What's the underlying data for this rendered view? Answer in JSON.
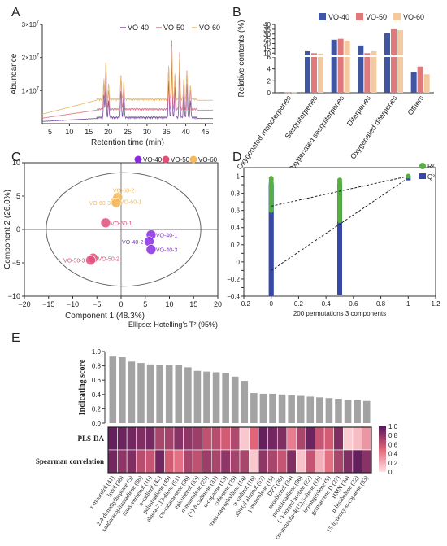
{
  "panels": [
    {
      "letter": "A"
    },
    {
      "letter": "B"
    },
    {
      "letter": "C"
    },
    {
      "letter": "D"
    },
    {
      "letter": "E"
    }
  ],
  "chart_data": [
    {
      "id": "A",
      "type": "line",
      "title": "",
      "xlabel": "Retention time (min)",
      "ylabel": "Abundance",
      "xlim": [
        3,
        47
      ],
      "ylim": [
        0,
        30000000
      ],
      "xticks": [
        "5",
        "10",
        "15",
        "20",
        "25",
        "30",
        "35",
        "40",
        "45"
      ],
      "yticks": [
        {
          "base": "1×10",
          "exp": "7",
          "value": 10000000
        },
        {
          "base": "2×10",
          "exp": "7",
          "value": 20000000
        },
        {
          "base": "3×10",
          "exp": "7",
          "value": 30000000
        }
      ],
      "legend_position": "top-right",
      "series": [
        {
          "name": "VO-40",
          "color": "#7b4fa0",
          "baseline": 1500000
        },
        {
          "name": "VO-50",
          "color": "#e07a8a",
          "baseline": 4000000
        },
        {
          "name": "VO-60",
          "color": "#e8b870",
          "baseline": 7000000
        }
      ],
      "peaks": [
        {
          "x": 18.9,
          "h": [
            7000000,
            8000000,
            6000000
          ]
        },
        {
          "x": 19.4,
          "h": [
            12000000,
            14000000,
            11000000
          ]
        },
        {
          "x": 20.1,
          "h": [
            5000000,
            6000000,
            4500000
          ]
        },
        {
          "x": 23.3,
          "h": [
            8000000,
            10000000,
            7000000
          ]
        },
        {
          "x": 24.0,
          "h": [
            6000000,
            6500000,
            5000000
          ]
        },
        {
          "x": 35.6,
          "h": [
            11000000,
            13000000,
            10000000
          ]
        },
        {
          "x": 36.4,
          "h": [
            17000000,
            21000000,
            16000000
          ]
        },
        {
          "x": 37.2,
          "h": [
            9000000,
            10000000,
            8000000
          ]
        },
        {
          "x": 38.4,
          "h": [
            14000000,
            17000000,
            13000000
          ]
        },
        {
          "x": 39.5,
          "h": [
            7000000,
            9000000,
            6000000
          ]
        },
        {
          "x": 40.3,
          "h": [
            10000000,
            12000000,
            8000000
          ]
        },
        {
          "x": 41.2,
          "h": [
            5000000,
            6000000,
            4000000
          ]
        }
      ]
    },
    {
      "id": "B",
      "type": "bar",
      "title": "",
      "xlabel": "",
      "ylabel": "Relative contents (%)",
      "yticks": [
        "0",
        "2",
        "4",
        "6",
        "10",
        "15",
        "20",
        "25",
        "30",
        "35",
        "40"
      ],
      "legend_position": "top",
      "categories": [
        "Oxygenated monoterpenes",
        "Sesquiterpenes",
        "Oxygenated sesquiterpenes",
        "Diterpenes",
        "Oxygenated diterpenes",
        "Others"
      ],
      "series": [
        {
          "name": "VO-40",
          "color": "#3f57a3",
          "values": [
            0.1,
            12,
            24,
            18,
            31,
            3.5
          ]
        },
        {
          "name": "VO-50",
          "color": "#e07a7a",
          "values": [
            0.05,
            10,
            25,
            10,
            35,
            4.4
          ]
        },
        {
          "name": "VO-60",
          "color": "#f3c9a0",
          "values": [
            0.05,
            9.5,
            23,
            12,
            34,
            3.1
          ]
        }
      ]
    },
    {
      "id": "C",
      "type": "scatter",
      "title": "",
      "xlabel": "Component 1 (48.3%)",
      "ylabel": "Component 2 (26.0%)",
      "xlim": [
        -20,
        20
      ],
      "ylim": [
        -10,
        10
      ],
      "xticks": [
        "−20",
        "−15",
        "−10",
        "−5",
        "0",
        "5",
        "10",
        "15",
        "20"
      ],
      "yticks": [
        "−10",
        "−5",
        "0",
        "5",
        "10"
      ],
      "note": "Ellipse: Hotelling's T² (95%)",
      "legend_position": "top-right",
      "series": [
        {
          "name": "VO-40",
          "color": "#8a2be2",
          "points": [
            {
              "x": 6.2,
              "y": -0.8,
              "label": "VO-40-1"
            },
            {
              "x": 5.8,
              "y": -1.8,
              "label": "VO-40-2"
            },
            {
              "x": 6.2,
              "y": -3.0,
              "label": "VO-40-3"
            }
          ]
        },
        {
          "name": "VO-50",
          "color": "#e0507a",
          "points": [
            {
              "x": -3.2,
              "y": 1.0,
              "label": "VO-50-1"
            },
            {
              "x": -5.8,
              "y": -4.3,
              "label": "VO-50-2"
            },
            {
              "x": -6.3,
              "y": -4.6,
              "label": "VO-50-3"
            }
          ]
        },
        {
          "name": "VO-60",
          "color": "#f5b85a",
          "points": [
            {
              "x": -1.2,
              "y": 4.2,
              "label": "VO-60-1"
            },
            {
              "x": -0.7,
              "y": 4.8,
              "label": "VO-60-2"
            },
            {
              "x": -1.0,
              "y": 4.0,
              "label": "VO-60-3"
            }
          ]
        }
      ]
    },
    {
      "id": "D",
      "type": "scatter",
      "title": "",
      "xlabel": "200 permutations 3 components",
      "ylabel": "",
      "xlim": [
        -0.2,
        1.2
      ],
      "ylim": [
        -0.4,
        1.1
      ],
      "xticks": [
        "−0.2",
        "0",
        "0.2",
        "0.4",
        "0.6",
        "0.8",
        "1",
        "1.2"
      ],
      "yticks": [
        "−0.4",
        "−0.3",
        "−0.2",
        "−0.1",
        "0",
        "0.1",
        "0.2",
        "0.3",
        "0.4",
        "0.5",
        "0.6",
        "0.7",
        "0.8",
        "0.9",
        "1"
      ],
      "legend_position": "top-right",
      "series": [
        {
          "name": "R²",
          "color": "#55b040",
          "columns": [
            {
              "x": 0,
              "min": 0.6,
              "max": 0.98
            },
            {
              "x": 0.5,
              "min": 0.48,
              "max": 0.98
            }
          ],
          "actual": {
            "x": 1,
            "y": 1.0
          },
          "intercept": 0.65
        },
        {
          "name": "Q²",
          "color": "#3848a8",
          "columns": [
            {
              "x": 0,
              "min": -0.38,
              "max": 0.92
            },
            {
              "x": 0.5,
              "min": -0.36,
              "max": 0.9
            }
          ],
          "actual": {
            "x": 1,
            "y": 0.98
          },
          "intercept": -0.1
        }
      ]
    },
    {
      "id": "E",
      "type": "heatmap",
      "title": "",
      "ylabel_bar": "Indicating score",
      "rows": [
        "PLS-DA",
        "Spearman correlation"
      ],
      "bar_yticks": [
        "0.0",
        "0.2",
        "0.4",
        "0.6",
        "0.8",
        "1.0"
      ],
      "colorbar_ticks": [
        "0",
        "0.2",
        "0.4",
        "0.6",
        "0.8",
        "1.0"
      ],
      "compounds": [
        "τ-muurolol (41)",
        "ledol (38)",
        "2,4-dimethylheptane (5)",
        "sandaracopimaradiene (58)",
        "trans-verbenol (10)",
        "α-cadinol (42)",
        "palustradiene (49)",
        "abieta-7,13-diene (51)",
        "cis-calamenene (36)",
        "epicubenol (33)",
        "α-muurolene (25)",
        "(+)-δ-cadinene (31)",
        "α-copaene (13)",
        "cubenene (29)",
        "trans-caryophyllene (14)",
        "α-cadinol (16)",
        "abietyl alcohol (57)",
        "γ-muurolene (19)",
        "DPT (30)",
        "neoabienol (34)",
        "neoabietadiene (56)",
        "(−)-bornyl acetate (22)",
        "cis-muurola-4(15),5-diene (18)",
        "isolongifolene (9)",
        "germacrene D (27)",
        "HMN (24)",
        "β-bisabolene (22)",
        "15-hydroxy-α-copaene (33)"
      ],
      "scores": [
        0.93,
        0.92,
        0.86,
        0.84,
        0.82,
        0.81,
        0.81,
        0.81,
        0.78,
        0.73,
        0.72,
        0.71,
        0.7,
        0.65,
        0.59,
        0.42,
        0.41,
        0.41,
        0.4,
        0.39,
        0.38,
        0.37,
        0.36,
        0.35,
        0.34,
        0.33,
        0.32,
        0.31
      ],
      "heat": [
        [
          0.95,
          0.92,
          0.9,
          0.85,
          0.88,
          0.7,
          0.72,
          0.82,
          0.8,
          0.75,
          0.62,
          0.65,
          0.55,
          0.68,
          0.1,
          0.5,
          0.95,
          0.9,
          0.85,
          0.4,
          0.7,
          0.92,
          0.6,
          0.55,
          0.85,
          0.08,
          0.15,
          0.3
        ],
        [
          0.9,
          0.8,
          0.85,
          0.65,
          0.6,
          0.9,
          0.55,
          0.45,
          0.7,
          0.62,
          0.75,
          0.7,
          0.8,
          0.72,
          0.7,
          0.1,
          0.8,
          0.7,
          0.6,
          0.85,
          0.12,
          0.6,
          0.2,
          0.45,
          0.7,
          0.85,
          0.95,
          0.82
        ]
      ]
    }
  ]
}
